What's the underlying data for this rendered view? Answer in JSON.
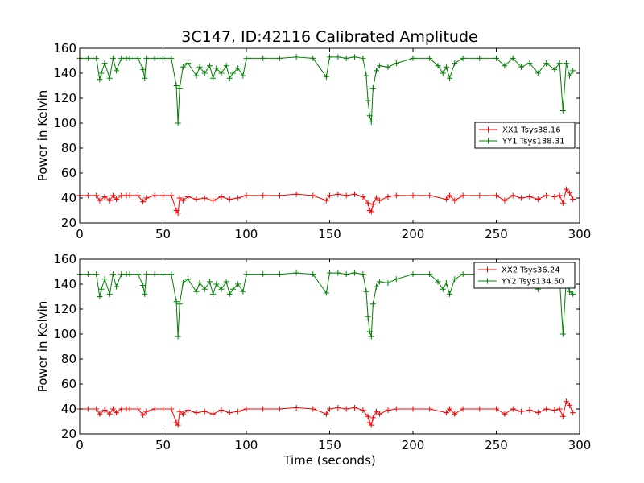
{
  "chart_data": [
    {
      "type": "line",
      "title": "3C147, ID:42116 Calibrated Amplitude",
      "xlabel": "",
      "ylabel": "Power in Kelvin",
      "xlim": [
        0,
        300
      ],
      "ylim": [
        20,
        160
      ],
      "xticks": [
        "0",
        "50",
        "100",
        "150",
        "200",
        "250",
        "300"
      ],
      "yticks": [
        "20",
        "40",
        "60",
        "80",
        "100",
        "120",
        "140",
        "160"
      ],
      "grid": false,
      "legend": "right",
      "marker": "+",
      "series": [
        {
          "name": "XX1 Tsys38.16",
          "color": "#ff0000",
          "x": [
            0,
            5,
            10,
            12,
            15,
            18,
            20,
            22,
            25,
            28,
            30,
            35,
            38,
            40,
            45,
            50,
            55,
            58,
            59,
            60,
            62,
            65,
            70,
            75,
            80,
            85,
            90,
            95,
            100,
            110,
            120,
            130,
            140,
            148,
            150,
            155,
            160,
            165,
            170,
            173,
            174,
            175,
            176,
            178,
            180,
            185,
            190,
            200,
            210,
            220,
            222,
            225,
            230,
            240,
            250,
            255,
            260,
            265,
            270,
            275,
            280,
            285,
            288,
            290,
            292,
            294,
            296
          ],
          "y": [
            42,
            42,
            42,
            38,
            41,
            38,
            42,
            39,
            42,
            42,
            42,
            42,
            37,
            40,
            42,
            42,
            42,
            30,
            28,
            40,
            38,
            41,
            39,
            40,
            38,
            41,
            39,
            40,
            42,
            42,
            42,
            43,
            42,
            38,
            42,
            43,
            42,
            43,
            41,
            36,
            30,
            29,
            35,
            40,
            38,
            41,
            42,
            42,
            42,
            39,
            42,
            38,
            42,
            42,
            42,
            38,
            42,
            40,
            41,
            39,
            42,
            41,
            42,
            36,
            47,
            44,
            39
          ]
        },
        {
          "name": "YY1 Tsys138.31",
          "color": "#008000",
          "x": [
            0,
            5,
            10,
            12,
            13,
            15,
            18,
            20,
            22,
            25,
            28,
            30,
            35,
            38,
            39,
            40,
            45,
            50,
            55,
            58,
            59,
            60,
            62,
            65,
            70,
            72,
            75,
            78,
            80,
            82,
            85,
            88,
            90,
            92,
            95,
            98,
            100,
            110,
            120,
            130,
            140,
            148,
            150,
            155,
            160,
            165,
            170,
            172,
            173,
            174,
            175,
            176,
            178,
            180,
            185,
            190,
            200,
            210,
            215,
            218,
            220,
            222,
            225,
            230,
            240,
            250,
            255,
            260,
            265,
            270,
            275,
            280,
            285,
            288,
            290,
            292,
            294,
            296
          ],
          "y": [
            152,
            152,
            152,
            135,
            140,
            148,
            136,
            152,
            142,
            152,
            152,
            152,
            152,
            143,
            136,
            152,
            152,
            152,
            152,
            130,
            100,
            128,
            145,
            148,
            138,
            145,
            140,
            146,
            136,
            144,
            140,
            146,
            136,
            140,
            144,
            138,
            152,
            152,
            152,
            153,
            152,
            137,
            153,
            153,
            152,
            153,
            152,
            138,
            118,
            106,
            101,
            128,
            142,
            146,
            145,
            148,
            152,
            152,
            146,
            140,
            145,
            136,
            148,
            152,
            152,
            152,
            146,
            152,
            145,
            148,
            140,
            148,
            143,
            148,
            110,
            148,
            138,
            142
          ]
        }
      ]
    },
    {
      "type": "line",
      "title": "",
      "xlabel": "Time (seconds)",
      "ylabel": "Power in Kelvin",
      "xlim": [
        0,
        300
      ],
      "ylim": [
        20,
        160
      ],
      "xticks": [
        "0",
        "50",
        "100",
        "150",
        "200",
        "250",
        "300"
      ],
      "yticks": [
        "20",
        "40",
        "60",
        "80",
        "100",
        "120",
        "140",
        "160"
      ],
      "grid": false,
      "legend": "top-right",
      "marker": "+",
      "series": [
        {
          "name": "XX2 Tsys36.24",
          "color": "#ff0000",
          "x": [
            0,
            5,
            10,
            12,
            15,
            18,
            20,
            22,
            25,
            28,
            30,
            35,
            38,
            40,
            45,
            50,
            55,
            58,
            59,
            60,
            62,
            65,
            70,
            75,
            80,
            85,
            90,
            95,
            100,
            110,
            120,
            130,
            140,
            148,
            150,
            155,
            160,
            165,
            170,
            173,
            174,
            175,
            176,
            178,
            180,
            185,
            190,
            200,
            210,
            220,
            222,
            225,
            230,
            240,
            250,
            255,
            260,
            265,
            270,
            275,
            280,
            285,
            288,
            290,
            292,
            294,
            296
          ],
          "y": [
            40,
            40,
            40,
            36,
            39,
            36,
            40,
            37,
            40,
            40,
            40,
            40,
            35,
            38,
            40,
            40,
            40,
            29,
            27,
            38,
            36,
            39,
            37,
            38,
            36,
            39,
            37,
            38,
            40,
            40,
            40,
            41,
            40,
            36,
            40,
            41,
            40,
            41,
            39,
            34,
            29,
            27,
            33,
            38,
            36,
            39,
            40,
            40,
            40,
            37,
            40,
            36,
            40,
            40,
            40,
            36,
            40,
            38,
            39,
            37,
            40,
            39,
            40,
            34,
            46,
            43,
            37
          ]
        },
        {
          "name": "YY2 Tsys134.50",
          "color": "#008000",
          "x": [
            0,
            5,
            10,
            12,
            13,
            15,
            18,
            20,
            22,
            25,
            28,
            30,
            35,
            38,
            39,
            40,
            45,
            50,
            55,
            58,
            59,
            60,
            62,
            65,
            70,
            72,
            75,
            78,
            80,
            82,
            85,
            88,
            90,
            92,
            95,
            98,
            100,
            110,
            120,
            130,
            140,
            148,
            150,
            155,
            160,
            165,
            170,
            172,
            173,
            174,
            175,
            176,
            178,
            180,
            185,
            190,
            200,
            210,
            215,
            218,
            220,
            222,
            225,
            230,
            240,
            250,
            255,
            260,
            265,
            270,
            275,
            280,
            285,
            288,
            290,
            292,
            294,
            296
          ],
          "y": [
            148,
            148,
            148,
            130,
            136,
            144,
            132,
            148,
            138,
            148,
            148,
            148,
            148,
            139,
            132,
            148,
            148,
            148,
            148,
            126,
            98,
            124,
            141,
            144,
            134,
            141,
            136,
            142,
            132,
            140,
            136,
            142,
            132,
            136,
            140,
            134,
            148,
            148,
            148,
            149,
            148,
            133,
            149,
            149,
            148,
            149,
            148,
            134,
            114,
            102,
            98,
            124,
            138,
            142,
            141,
            144,
            148,
            148,
            142,
            136,
            141,
            132,
            144,
            148,
            148,
            148,
            142,
            148,
            141,
            144,
            136,
            144,
            139,
            144,
            100,
            144,
            134,
            132
          ]
        }
      ]
    }
  ]
}
